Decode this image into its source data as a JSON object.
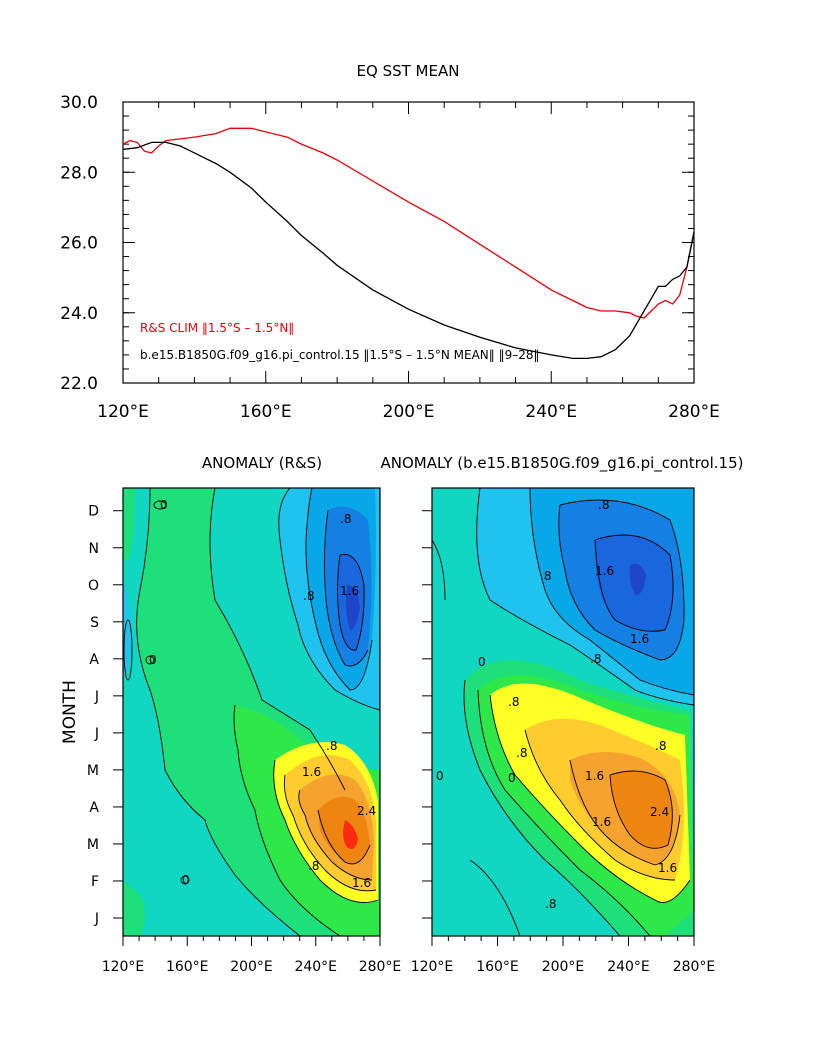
{
  "chart_data": [
    {
      "type": "line",
      "title": "EQ SST MEAN",
      "xlim": [
        120,
        280
      ],
      "ylim": [
        22,
        30
      ],
      "x_ticks": [
        "120°E",
        "160°E",
        "200°E",
        "240°E",
        "280°E"
      ],
      "x_tick_values": [
        120,
        160,
        200,
        240,
        280
      ],
      "y_ticks": [
        "30.0",
        "28.0",
        "26.0",
        "24.0",
        "22.0"
      ],
      "y_tick_values": [
        30,
        28,
        26,
        24,
        22
      ],
      "series": [
        {
          "name": "R&S CLIM ‖1.5°S – 1.5°N‖",
          "color": "#e8000b",
          "x": [
            120,
            122,
            124,
            126,
            128,
            130,
            132,
            136,
            140,
            146,
            150,
            156,
            160,
            166,
            170,
            176,
            180,
            190,
            200,
            210,
            220,
            230,
            240,
            246,
            250,
            254,
            258,
            262,
            264,
            266,
            268,
            270,
            272,
            274,
            276,
            278,
            280
          ],
          "y": [
            28.8,
            28.9,
            28.85,
            28.6,
            28.55,
            28.75,
            28.9,
            28.95,
            29.0,
            29.1,
            29.25,
            29.25,
            29.15,
            29.0,
            28.8,
            28.55,
            28.35,
            27.75,
            27.15,
            26.6,
            25.95,
            25.3,
            24.65,
            24.35,
            24.15,
            24.05,
            24.05,
            24.0,
            23.9,
            23.85,
            24.05,
            24.25,
            24.35,
            24.25,
            24.5,
            25.3,
            26.3
          ]
        },
        {
          "name": "b.e15.B1850G.f09_g16.pi_control.15 ‖1.5°S – 1.5°N MEAN‖ ‖9–28‖",
          "color": "#000000",
          "x": [
            120,
            124,
            128,
            132,
            136,
            140,
            146,
            150,
            156,
            160,
            166,
            170,
            176,
            180,
            190,
            200,
            210,
            220,
            230,
            240,
            246,
            250,
            254,
            258,
            262,
            264,
            266,
            268,
            270,
            272,
            274,
            276,
            278,
            280
          ],
          "y": [
            28.65,
            28.7,
            28.85,
            28.85,
            28.75,
            28.55,
            28.25,
            28.0,
            27.55,
            27.15,
            26.6,
            26.2,
            25.7,
            25.35,
            24.65,
            24.1,
            23.65,
            23.3,
            23.0,
            22.8,
            22.7,
            22.7,
            22.75,
            22.95,
            23.35,
            23.7,
            24.05,
            24.4,
            24.75,
            24.75,
            24.95,
            25.05,
            25.3,
            26.3
          ]
        }
      ],
      "legend": "bottom-left inside"
    },
    {
      "type": "heatmap",
      "title": "ANOMALY (R&S)",
      "xlim": [
        120,
        280
      ],
      "ylabel": "MONTH",
      "x_ticks": [
        "120°E",
        "160°E",
        "200°E",
        "240°E",
        "280°E"
      ],
      "x_tick_values": [
        120,
        160,
        200,
        240,
        280
      ],
      "y_ticks": [
        "J",
        "F",
        "M",
        "A",
        "M",
        "J",
        "J",
        "A",
        "S",
        "O",
        "N",
        "D"
      ],
      "contour_interval": 0.4,
      "contour_labels": [
        "0",
        ".8",
        "1.6",
        "2.4"
      ],
      "min_anomaly": -2.4,
      "max_anomaly": 3.0
    },
    {
      "type": "heatmap",
      "title": "ANOMALY (b.e15.B1850G.f09_g16.pi_control.15)",
      "xlim": [
        120,
        280
      ],
      "x_ticks": [
        "120°E",
        "160°E",
        "200°E",
        "240°E",
        "280°E"
      ],
      "x_tick_values": [
        120,
        160,
        200,
        240,
        280
      ],
      "y_ticks": [
        "J",
        "F",
        "M",
        "A",
        "M",
        "J",
        "J",
        "A",
        "S",
        "O",
        "N",
        "D"
      ],
      "contour_interval": 0.4,
      "contour_labels": [
        "0",
        ".8",
        "1.6",
        "2.4"
      ],
      "min_anomaly": -2.6,
      "max_anomaly": 2.6
    }
  ],
  "legend_labels": {
    "rs": "R&S CLIM ‖1.5°S – 1.5°N‖",
    "model": "b.e15.B1850G.f09_g16.pi_control.15 ‖1.5°S – 1.5°N MEAN‖ ‖9–28‖"
  },
  "colors": {
    "red_line": "#e8000b",
    "black_line": "#000000"
  }
}
